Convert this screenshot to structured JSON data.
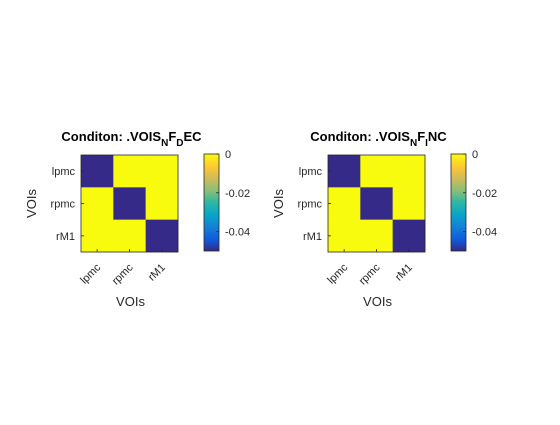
{
  "figure": {
    "background": "#ffffff"
  },
  "chart_data": [
    {
      "type": "heatmap",
      "title": {
        "prefix": "Conditon: .VOIS",
        "parts": [
          {
            "text": "N",
            "sub": true
          },
          {
            "text": "F",
            "sub": false
          },
          {
            "text": "D",
            "sub": true
          },
          {
            "text": "EC",
            "sub": false
          }
        ]
      },
      "xlabel": "VOIs",
      "ylabel": "VOIs",
      "x_categories": [
        "lpmc",
        "rpmc",
        "rM1"
      ],
      "y_categories": [
        "lpmc",
        "rpmc",
        "rM1"
      ],
      "values": [
        [
          -0.05,
          0,
          0
        ],
        [
          0,
          -0.05,
          0
        ],
        [
          0,
          0,
          -0.05
        ]
      ],
      "colorbar": {
        "ticks": [
          0,
          -0.02,
          -0.04
        ],
        "tick_labels": [
          "0",
          "-0.02",
          "-0.04"
        ],
        "clim": [
          -0.05,
          0
        ]
      },
      "colormap": "parula",
      "grid": false
    },
    {
      "type": "heatmap",
      "title": {
        "prefix": "Conditon: .VOIS",
        "parts": [
          {
            "text": "N",
            "sub": true
          },
          {
            "text": "F",
            "sub": false
          },
          {
            "text": "I",
            "sub": true
          },
          {
            "text": "NC",
            "sub": false
          }
        ]
      },
      "xlabel": "VOIs",
      "ylabel": "VOIs",
      "x_categories": [
        "lpmc",
        "rpmc",
        "rM1"
      ],
      "y_categories": [
        "lpmc",
        "rpmc",
        "rM1"
      ],
      "values": [
        [
          -0.05,
          0,
          0
        ],
        [
          0,
          -0.05,
          0
        ],
        [
          0,
          0,
          -0.05
        ]
      ],
      "colorbar": {
        "ticks": [
          0,
          -0.02,
          -0.04
        ],
        "tick_labels": [
          "0",
          "-0.02",
          "-0.04"
        ],
        "clim": [
          -0.05,
          0
        ]
      },
      "colormap": "parula",
      "grid": false
    }
  ]
}
